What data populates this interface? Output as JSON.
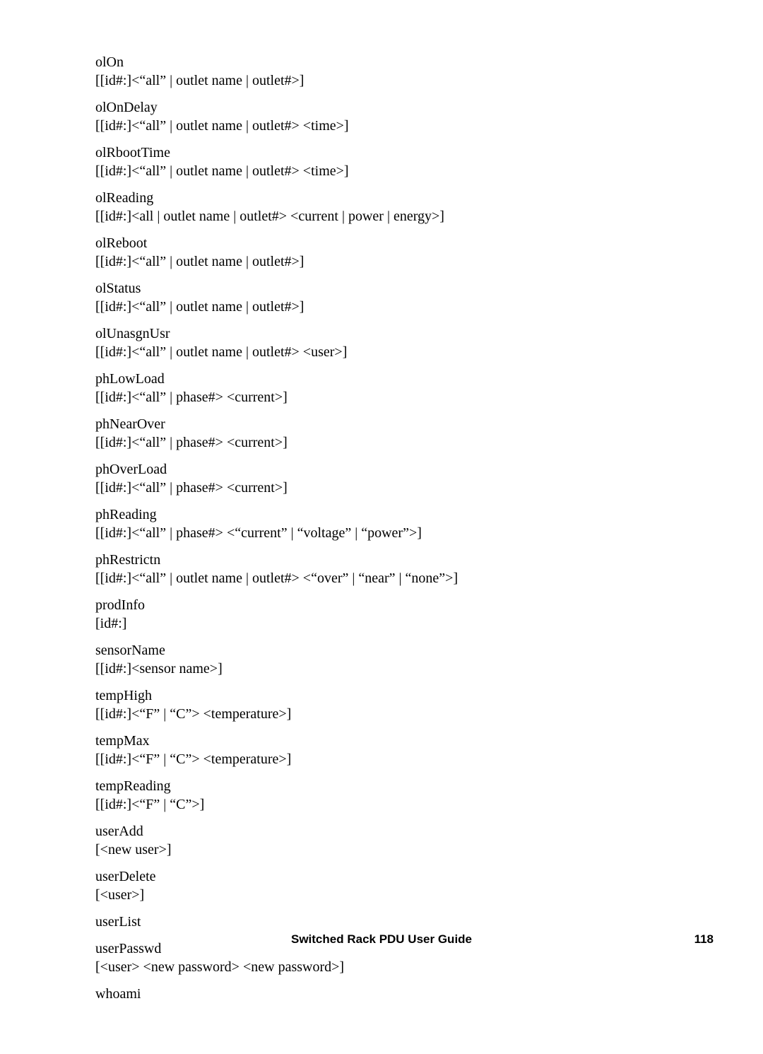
{
  "commands": [
    {
      "name": "olOn",
      "syntax": "[[id#:]<“all” | outlet name | outlet#>]"
    },
    {
      "name": "olOnDelay",
      "syntax": "[[id#:]<“all” | outlet name | outlet#> <time>]"
    },
    {
      "name": "olRbootTime",
      "syntax": "[[id#:]<“all” | outlet name | outlet#> <time>]"
    },
    {
      "name": "olReading",
      "syntax": "[[id#:]<all | outlet name | outlet#> <current | power | energy>]"
    },
    {
      "name": "olReboot",
      "syntax": "[[id#:]<“all” | outlet name | outlet#>]"
    },
    {
      "name": "olStatus",
      "syntax": "[[id#:]<“all” | outlet name | outlet#>]"
    },
    {
      "name": "olUnasgnUsr",
      "syntax": "[[id#:]<“all” | outlet name | outlet#> <user>]"
    },
    {
      "name": "phLowLoad",
      "syntax": "[[id#:]<“all” | phase#> <current>]"
    },
    {
      "name": "phNearOver",
      "syntax": "[[id#:]<“all” | phase#> <current>]"
    },
    {
      "name": "phOverLoad",
      "syntax": "[[id#:]<“all” | phase#> <current>]"
    },
    {
      "name": "phReading",
      "syntax": "[[id#:]<“all” | phase#> <“current” | “voltage” | “power”>]"
    },
    {
      "name": "phRestrictn",
      "syntax": "[[id#:]<“all” | outlet name | outlet#> <“over” | “near” | “none”>]"
    },
    {
      "name": "prodInfo",
      "syntax": "[id#:]"
    },
    {
      "name": "sensorName",
      "syntax": "[[id#:]<sensor name>]"
    },
    {
      "name": "tempHigh",
      "syntax": "[[id#:]<“F” | “C”> <temperature>]"
    },
    {
      "name": "tempMax",
      "syntax": "[[id#:]<“F” | “C”> <temperature>]"
    },
    {
      "name": "tempReading",
      "syntax": "[[id#:]<“F” | “C”>]"
    },
    {
      "name": "userAdd",
      "syntax": "[<new user>]"
    },
    {
      "name": "userDelete",
      "syntax": "[<user>]"
    },
    {
      "name": "userList",
      "syntax": ""
    },
    {
      "name": "userPasswd",
      "syntax": "[<user> <new password> <new password>]"
    },
    {
      "name": "whoami",
      "syntax": ""
    }
  ],
  "footer_title": "Switched Rack PDU User Guide",
  "page_number": "118"
}
